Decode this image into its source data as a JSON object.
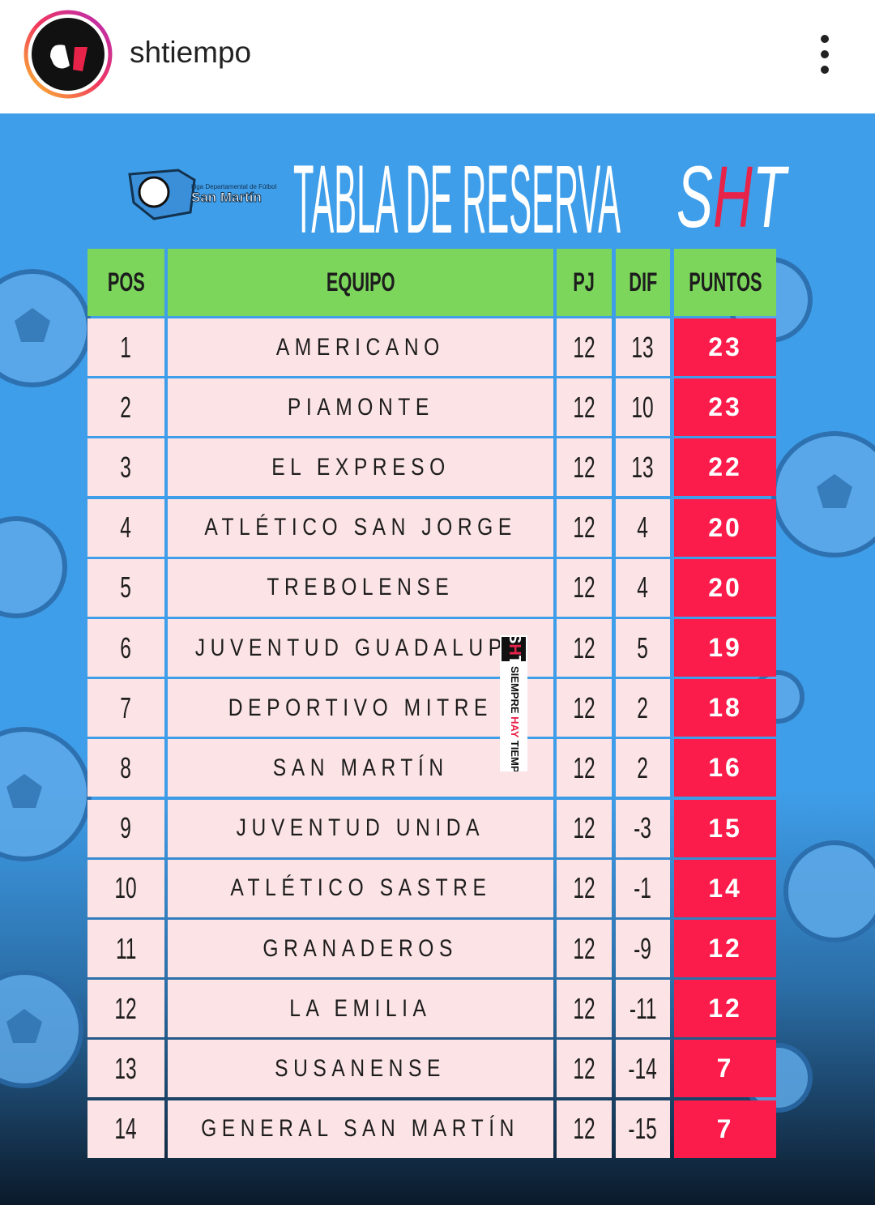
{
  "header": {
    "username": "shtiempo"
  },
  "post": {
    "title": "TABLA DE RESERVA",
    "brand": "SHT",
    "league_logo": {
      "line1": "Liga Departamental de Fútbol",
      "line2": "San Martín"
    },
    "watermark": {
      "brand": "SHT",
      "slogan": [
        "SIEMPRE",
        "HAY",
        "TIEMPO"
      ]
    }
  },
  "table": {
    "columns": [
      "POS",
      "EQUIPO",
      "PJ",
      "DIF",
      "PUNTOS"
    ],
    "rows": [
      [
        1,
        "AMERICANO",
        12,
        13,
        23
      ],
      [
        2,
        "PIAMONTE",
        12,
        10,
        23
      ],
      [
        3,
        "EL EXPRESO",
        12,
        13,
        22
      ],
      [
        4,
        "ATLÉTICO SAN JORGE",
        12,
        4,
        20
      ],
      [
        5,
        "TREBOLENSE",
        12,
        4,
        20
      ],
      [
        6,
        "JUVENTUD GUADALUPE",
        12,
        5,
        19
      ],
      [
        7,
        "DEPORTIVO MITRE",
        12,
        2,
        18
      ],
      [
        8,
        "SAN MARTÍN",
        12,
        2,
        16
      ],
      [
        9,
        "JUVENTUD UNIDA",
        12,
        -3,
        15
      ],
      [
        10,
        "ATLÉTICO SASTRE",
        12,
        -1,
        14
      ],
      [
        11,
        "GRANADEROS",
        12,
        -9,
        12
      ],
      [
        12,
        "LA EMILIA",
        12,
        -11,
        12
      ],
      [
        13,
        "SUSANENSE",
        12,
        -14,
        7
      ],
      [
        14,
        "GENERAL SAN MARTÍN",
        12,
        -15,
        7
      ]
    ]
  }
}
